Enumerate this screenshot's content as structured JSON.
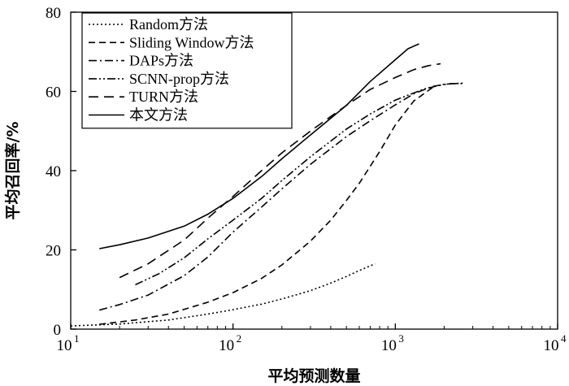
{
  "chart_data": {
    "type": "line",
    "xlabel": "平均预测数量",
    "ylabel": "平均召回率/%",
    "xscale": "log",
    "xlim": [
      10,
      10000
    ],
    "ylim": [
      0,
      80
    ],
    "x_ticks": [
      {
        "value": 10,
        "base": "10",
        "exp": "1"
      },
      {
        "value": 100,
        "base": "10",
        "exp": "2"
      },
      {
        "value": 1000,
        "base": "10",
        "exp": "3"
      },
      {
        "value": 10000,
        "base": "10",
        "exp": "4"
      }
    ],
    "y_ticks": [
      {
        "value": 0,
        "label": "0"
      },
      {
        "value": 20,
        "label": "20"
      },
      {
        "value": 40,
        "label": "40"
      },
      {
        "value": 60,
        "label": "60"
      },
      {
        "value": 80,
        "label": "80"
      }
    ],
    "grid": false,
    "legend_position": "top-left",
    "series": [
      {
        "name": "Random方法",
        "style": "dotted",
        "color": "#000000",
        "x": [
          10,
          20,
          40,
          70,
          100,
          150,
          200,
          300,
          400,
          500,
          600,
          750
        ],
        "y": [
          0.8,
          1.3,
          2.3,
          3.8,
          4.9,
          6.3,
          7.6,
          9.7,
          11.6,
          13.3,
          14.8,
          16.5
        ]
      },
      {
        "name": "Sliding Window方法",
        "style": "dashed",
        "color": "#000000",
        "x": [
          15,
          25,
          40,
          70,
          100,
          150,
          200,
          300,
          400,
          500,
          600,
          800,
          1000,
          1300,
          1700
        ],
        "y": [
          1.2,
          2.3,
          3.8,
          6.8,
          9.2,
          12.8,
          16.2,
          22.2,
          27.5,
          32.5,
          36.8,
          44.8,
          51.5,
          57.6,
          61.0
        ]
      },
      {
        "name": "DAPs方法",
        "style": "dashdot",
        "color": "#000000",
        "x": [
          15,
          20,
          30,
          50,
          70,
          100,
          150,
          200,
          300,
          500,
          700,
          1000,
          1300,
          1700,
          2200,
          2700
        ],
        "y": [
          4.8,
          6.2,
          8.6,
          13.5,
          18.2,
          24.5,
          30.8,
          35.4,
          41.6,
          48.6,
          52.6,
          56.6,
          59.4,
          61.3,
          62.0,
          62.0
        ]
      },
      {
        "name": "SCNN-prop方法",
        "style": "dashdotdot",
        "color": "#000000",
        "x": [
          25,
          35,
          50,
          70,
          100,
          150,
          200,
          300,
          500,
          700,
          1000,
          1500,
          2000,
          2600
        ],
        "y": [
          11.2,
          14.0,
          18.0,
          22.8,
          27.5,
          33.0,
          37.5,
          43.5,
          50.5,
          54.3,
          57.8,
          60.6,
          61.8,
          62.1
        ]
      },
      {
        "name": "TURN方法",
        "style": "longdash",
        "color": "#000000",
        "x": [
          20,
          30,
          50,
          70,
          100,
          150,
          200,
          300,
          500,
          700,
          1000,
          1300,
          1600,
          1900
        ],
        "y": [
          13.0,
          16.5,
          22.5,
          28.0,
          33.5,
          40.0,
          44.5,
          50.0,
          56.5,
          60.5,
          63.5,
          65.5,
          66.5,
          67.0
        ]
      },
      {
        "name": "本文方法",
        "style": "solid",
        "color": "#000000",
        "x": [
          15,
          20,
          30,
          50,
          70,
          100,
          150,
          200,
          300,
          500,
          700,
          1000,
          1200,
          1400
        ],
        "y": [
          20.3,
          21.3,
          23.0,
          26.0,
          29.0,
          33.0,
          38.5,
          43.0,
          49.0,
          56.5,
          62.5,
          68.0,
          70.8,
          72.0
        ]
      }
    ]
  }
}
